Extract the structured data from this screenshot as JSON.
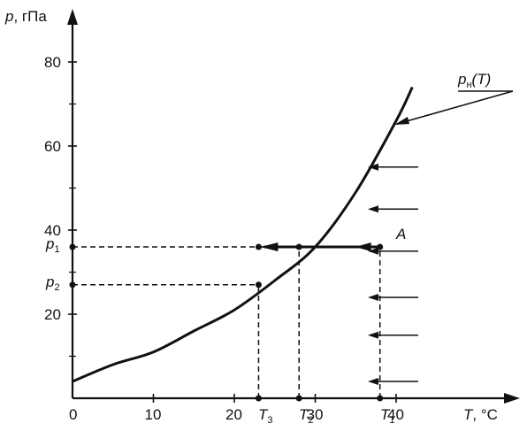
{
  "axes": {
    "y_title_var": "p",
    "y_title_unit": ", гПа",
    "x_title_var": "T",
    "x_title_unit": ", °С"
  },
  "x_ticks": [
    "0",
    "10",
    "20",
    "30",
    "40"
  ],
  "y_ticks": [
    "20",
    "40",
    "60",
    "80"
  ],
  "point_labels": {
    "T3": {
      "main": "T",
      "sub": "3"
    },
    "T2": {
      "main": "T",
      "sub": "2"
    },
    "T1": {
      "main": "T",
      "sub": "1"
    },
    "p1": {
      "main": "p",
      "sub": "1"
    },
    "p2": {
      "main": "p",
      "sub": "2"
    },
    "A": "A"
  },
  "curve_label": {
    "main": "p",
    "sub": "н",
    "arg": "(T)"
  },
  "chart_data": {
    "type": "line",
    "x_range": [
      0,
      40
    ],
    "y_range": [
      0,
      80
    ],
    "curve": {
      "x": [
        0,
        5,
        10,
        15,
        20,
        25,
        30,
        35,
        40,
        42
      ],
      "y": [
        4,
        8,
        11,
        16,
        21,
        28,
        36,
        49,
        66,
        74
      ]
    },
    "points": {
      "T1": 38,
      "T2": 28,
      "T3": 23,
      "p1": 36,
      "p2": 27
    },
    "dashed_h": [
      {
        "x_from": 0,
        "x_to": 38,
        "y": 36
      },
      {
        "x_from": 0,
        "x_to": 23,
        "y": 27
      }
    ],
    "dashed_v": [
      {
        "x": 23,
        "y_from": 0,
        "y_to": 27
      },
      {
        "x": 28,
        "y_from": 0,
        "y_to": 36
      },
      {
        "x": 38,
        "y_from": 0,
        "y_to": 36
      }
    ],
    "isobar": {
      "y": 36,
      "x_from": 38,
      "x_to": 23
    },
    "small_arrow_y": [
      55,
      45,
      35,
      24,
      15,
      4
    ]
  }
}
